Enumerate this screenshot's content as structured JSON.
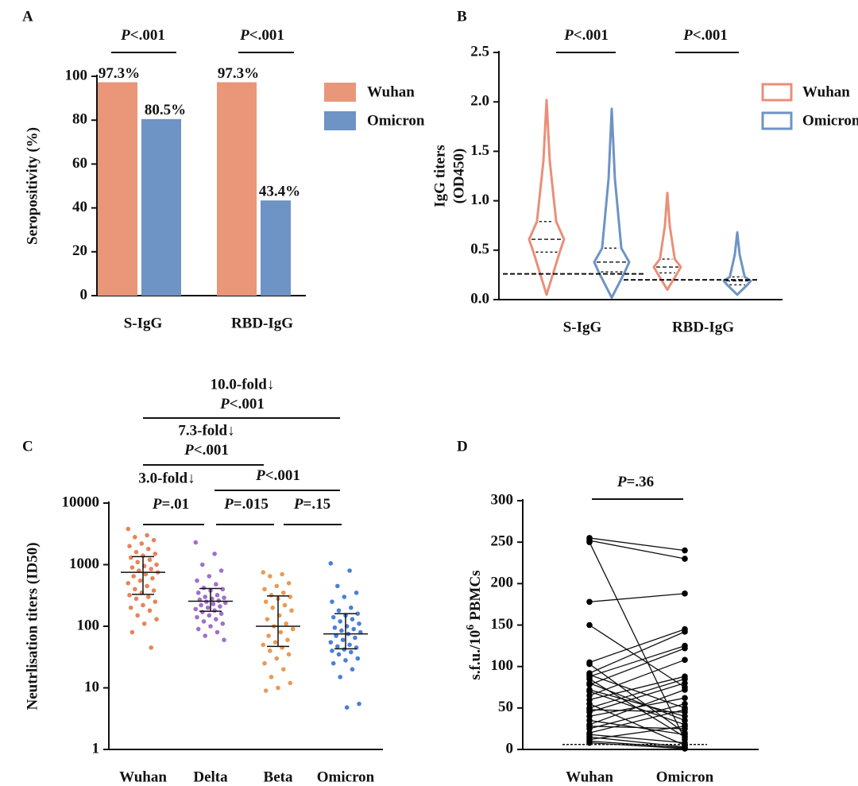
{
  "chart_data": [
    {
      "type": "bar",
      "panel": "A",
      "ylabel": "Seropositivity (%)",
      "categories": [
        "S-IgG",
        "RBD-IgG"
      ],
      "series": [
        {
          "name": "Wuhan",
          "color": "#ea9679",
          "values": [
            97.3,
            97.3
          ],
          "value_labels": [
            "97.3%",
            "97.3%"
          ]
        },
        {
          "name": "Omicron",
          "color": "#6e93c5",
          "values": [
            80.5,
            43.4
          ],
          "value_labels": [
            "80.5%",
            "43.4%"
          ]
        }
      ],
      "ylim": [
        0,
        100
      ],
      "yticks": [
        0,
        20,
        40,
        60,
        80,
        100
      ],
      "annotations": [
        "P<.001",
        "P<.001"
      ],
      "legend": "upper right"
    },
    {
      "type": "violin",
      "panel": "B",
      "ylabel": [
        "IgG titers",
        "(OD450)"
      ],
      "categories": [
        "S-IgG",
        "RBD-IgG"
      ],
      "series": [
        {
          "name": "Wuhan",
          "color": "#ea8f78",
          "min": [
            0.05,
            0.1
          ],
          "q1": [
            0.48,
            0.27
          ],
          "median": [
            0.61,
            0.33
          ],
          "q3": [
            0.79,
            0.41
          ],
          "max": [
            2.02,
            1.08
          ]
        },
        {
          "name": "Omicron",
          "color": "#6e93c5",
          "min": [
            0.02,
            0.05
          ],
          "q1": [
            0.28,
            0.15
          ],
          "median": [
            0.38,
            0.19
          ],
          "q3": [
            0.52,
            0.23
          ],
          "max": [
            1.93,
            0.68
          ]
        }
      ],
      "cutoffs": [
        0.26,
        0.2
      ],
      "ylim": [
        0,
        2.5
      ],
      "yticks": [
        {
          "value": 0,
          "label": "0.0"
        },
        0.5,
        {
          "value": 1,
          "label": "1.0"
        },
        1.5,
        {
          "value": 2,
          "label": "2.0"
        },
        2.5
      ],
      "annotations": [
        "P<.001",
        "P<.001"
      ],
      "legend": "upper right"
    },
    {
      "type": "strip",
      "panel": "C",
      "ylabel": "Neutrlisation titers (ID50)",
      "log_scale": true,
      "series": [
        {
          "name": "Wuhan",
          "color": "#e8835a",
          "median": 750,
          "q1": 330,
          "q3": 1350,
          "values": [
            3800,
            3000,
            2800,
            2500,
            2200,
            2000,
            1800,
            1600,
            1500,
            1400,
            1300,
            1200,
            1100,
            1000,
            950,
            900,
            850,
            800,
            750,
            700,
            650,
            600,
            550,
            500,
            450,
            400,
            380,
            350,
            320,
            300,
            280,
            250,
            220,
            200,
            180,
            150,
            130,
            110,
            80,
            45
          ]
        },
        {
          "name": "Delta",
          "color": "#a070c8",
          "median": 255,
          "q1": 175,
          "q3": 410,
          "values": [
            2300,
            1500,
            1000,
            800,
            650,
            550,
            480,
            420,
            400,
            380,
            350,
            320,
            300,
            290,
            280,
            270,
            260,
            250,
            240,
            230,
            220,
            210,
            200,
            190,
            180,
            170,
            160,
            150,
            140,
            130,
            120,
            110,
            100,
            90,
            80,
            70,
            60
          ]
        },
        {
          "name": "Beta",
          "color": "#e89a55",
          "median": 100,
          "q1": 47,
          "q3": 310,
          "values": [
            750,
            700,
            650,
            500,
            450,
            400,
            350,
            320,
            300,
            280,
            250,
            220,
            200,
            180,
            150,
            130,
            110,
            100,
            90,
            80,
            70,
            60,
            55,
            50,
            45,
            40,
            35,
            30,
            25,
            20,
            15,
            12,
            10,
            9
          ]
        },
        {
          "name": "Omicron",
          "color": "#4a7fd8",
          "median": 75,
          "q1": 43,
          "q3": 160,
          "values": [
            1050,
            800,
            450,
            350,
            300,
            250,
            200,
            180,
            160,
            150,
            140,
            130,
            120,
            110,
            100,
            95,
            90,
            85,
            80,
            75,
            70,
            65,
            60,
            55,
            50,
            47,
            45,
            42,
            40,
            38,
            35,
            30,
            28,
            25,
            20,
            15,
            5.5,
            4.8
          ]
        }
      ],
      "ylim": [
        1,
        10000
      ],
      "yticks": [
        1,
        10,
        100,
        1000,
        10000
      ],
      "annotations": [
        "10.0-fold↓",
        "P<.001",
        "7.3-fold↓",
        "P<.001",
        "3.0-fold↓",
        "P=.01",
        "P<.001",
        "P=.015",
        "P=.15"
      ]
    },
    {
      "type": "paired",
      "panel": "D",
      "ylabel": [
        "s.f.u./10",
        "6",
        "PBMCs"
      ],
      "series": [
        {
          "name": "Wuhan",
          "color": "#000000",
          "values": [
            255,
            252,
            250,
            178,
            150,
            105,
            103,
            92,
            90,
            88,
            85,
            80,
            78,
            72,
            70,
            65,
            60,
            55,
            50,
            48,
            45,
            40,
            35,
            30,
            28,
            25,
            20,
            18,
            15,
            12,
            10,
            8
          ]
        },
        {
          "name": "Omicron",
          "color": "#000000",
          "values": [
            240,
            230,
            12,
            188,
            75,
            145,
            20,
            142,
            50,
            125,
            15,
            35,
            122,
            40,
            30,
            108,
            88,
            5,
            85,
            45,
            80,
            62,
            18,
            72,
            25,
            55,
            48,
            8,
            3,
            28,
            2,
            1
          ]
        }
      ],
      "cutoffs": [
        6
      ],
      "ylim": [
        0,
        300
      ],
      "yticks": [
        0,
        50,
        100,
        150,
        200,
        250,
        300
      ],
      "annotations": [
        "P=.36"
      ]
    }
  ]
}
